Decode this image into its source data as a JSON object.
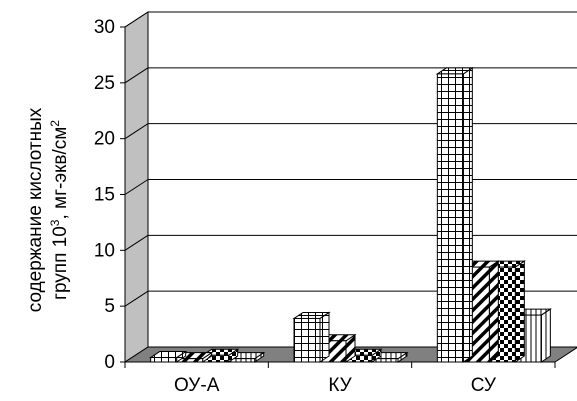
{
  "chart_data": {
    "type": "bar",
    "categories": [
      "ОУ-А",
      "КУ",
      "СУ"
    ],
    "series": [
      {
        "values": [
          0.4,
          3.9,
          25.8
        ],
        "pattern": "grid"
      },
      {
        "values": [
          0.3,
          1.9,
          8.5
        ],
        "pattern": "diagonal"
      },
      {
        "values": [
          0.6,
          0.6,
          8.5
        ],
        "pattern": "checker"
      },
      {
        "values": [
          0.3,
          0.3,
          4.2
        ],
        "pattern": "vertical"
      }
    ],
    "ylim": [
      0,
      30
    ],
    "yticks": [
      "0",
      "5",
      "10",
      "15",
      "20",
      "25",
      "30"
    ],
    "ylabel_line1": "содержание кислотных",
    "ylabel_line2_prefix": "групп 10",
    "ylabel_line2_sup": "3",
    "ylabel_line2_mid": ", мг-экв/см",
    "ylabel_line2_sup2": "2",
    "grid": true,
    "colors": {
      "floor": "#808080",
      "wall_side": "#c0c0c0",
      "bar_fill": "#ffffff",
      "ink": "#000000"
    }
  }
}
